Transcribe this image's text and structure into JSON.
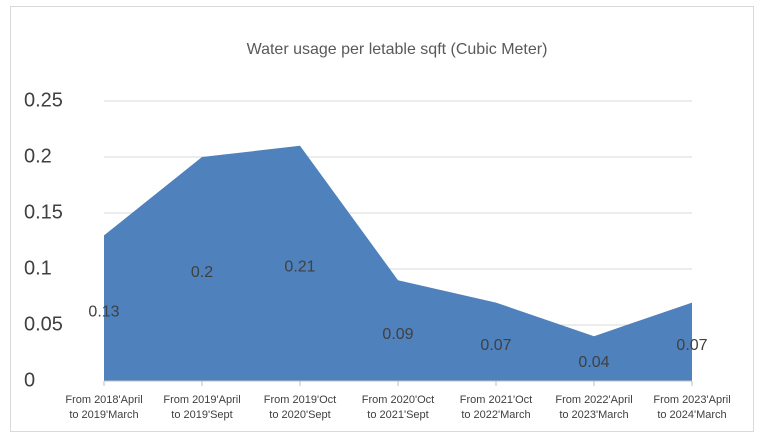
{
  "chart_data": {
    "type": "area",
    "title": "Water usage per letable sqft (Cubic Meter)",
    "categories": [
      [
        "From 2018'April",
        "to 2019'March"
      ],
      [
        "From 2019'April",
        "to 2019'Sept"
      ],
      [
        "From 2019'Oct",
        "to 2020'Sept"
      ],
      [
        "From 2020'Oct",
        "to 2021'Sept"
      ],
      [
        "From 2021'Oct",
        "to 2022'March"
      ],
      [
        "From 2022'April",
        "to 2023'March"
      ],
      [
        "From 2023'April",
        "to 2024'March"
      ]
    ],
    "values": [
      0.13,
      0.2,
      0.21,
      0.09,
      0.07,
      0.04,
      0.07
    ],
    "color": "#4f81bd",
    "ylim": [
      0,
      0.25
    ],
    "yticks": [
      0,
      0.05,
      0.1,
      0.15,
      0.2,
      0.25
    ],
    "grid": true
  }
}
